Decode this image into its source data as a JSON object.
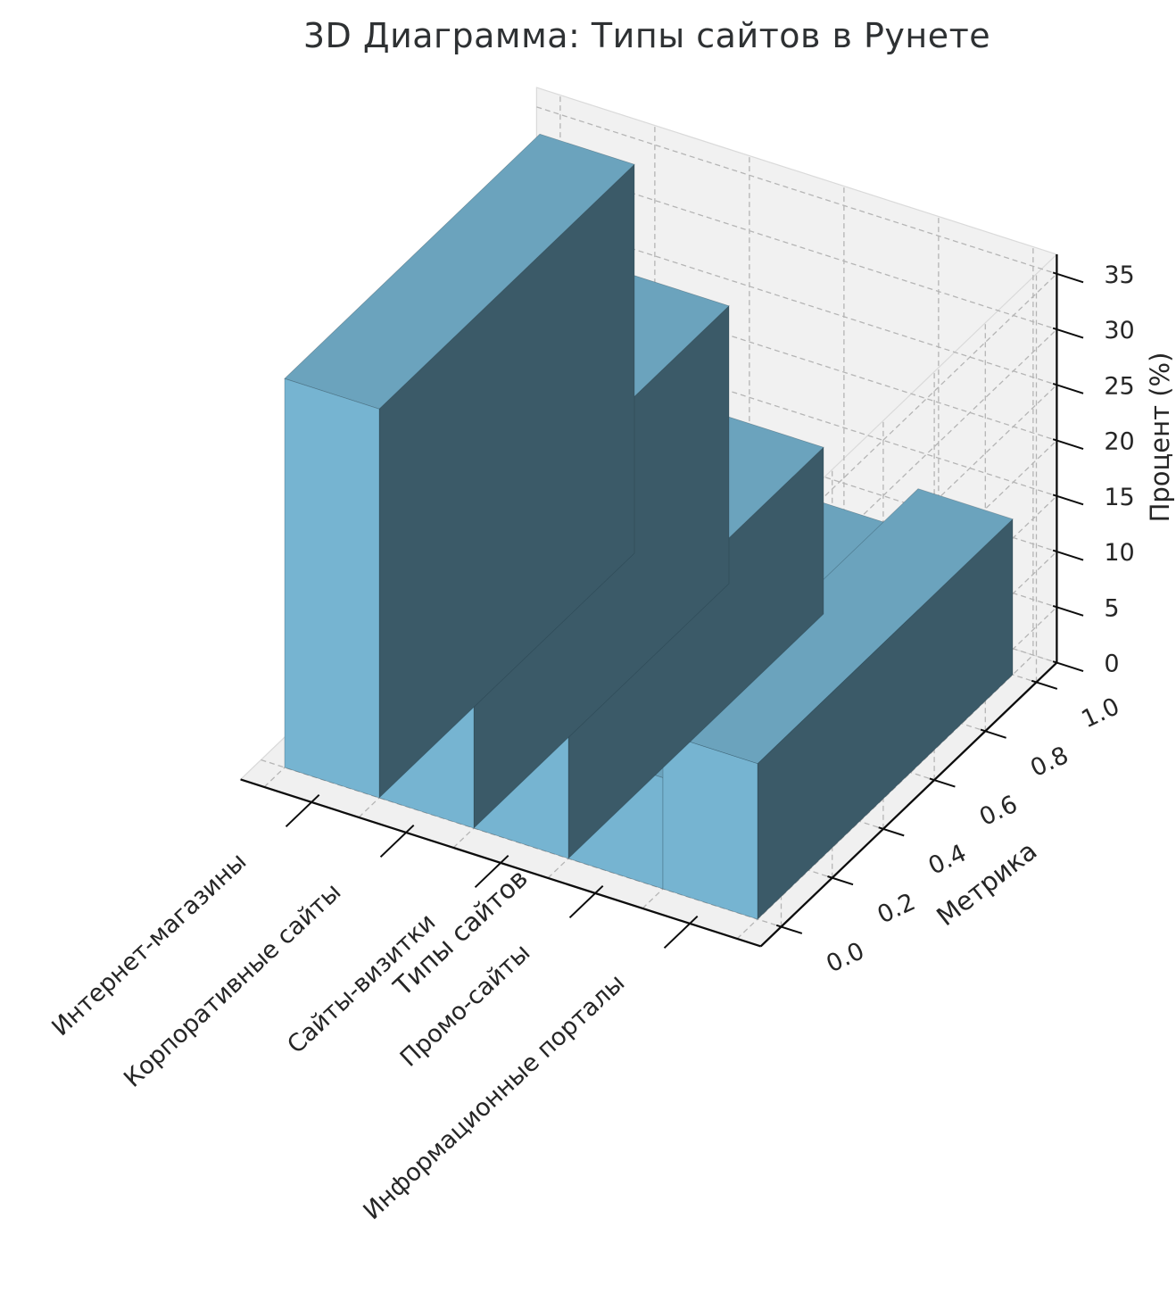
{
  "title": "3D Диаграмма: Типы сайтов в Рунете",
  "chart_data": {
    "type": "bar",
    "projection": "3d",
    "title": "3D Диаграмма: Типы сайтов в Рунете",
    "categories": [
      "Интернет-магазины",
      "Корпоративные сайты",
      "Сайты-визитки",
      "Промо-сайты",
      "Информационные порталы"
    ],
    "values": [
      35,
      25,
      15,
      10,
      14
    ],
    "bar_depth": 1,
    "xlabel": "Типы сайтов",
    "ylabel": "Метрика",
    "zlabel": "Процент (%)",
    "yticks": [
      "0.0",
      "0.2",
      "0.4",
      "0.6",
      "0.8",
      "1.0"
    ],
    "ytick_values": [
      0,
      0.2,
      0.4,
      0.6,
      0.8,
      1.0
    ],
    "zticks": [
      0,
      5,
      10,
      15,
      20,
      25,
      30,
      35
    ],
    "zlim": [
      0,
      35
    ],
    "grid": true,
    "legend": "none",
    "colors": {
      "bar_top": "#6ba3bd",
      "bar_front": "#76b4d1",
      "bar_side": "#3b5a68",
      "bar_edge": "rgba(28,52,64,0.35)",
      "pane_wall": "#f1f1f1",
      "pane_floor": "#f0f0f0",
      "pane_edge": "#dadada",
      "gridline": "#b5b5b5",
      "spine": "#0d0d0d",
      "text": "#262626",
      "background": "#ffffff"
    }
  }
}
